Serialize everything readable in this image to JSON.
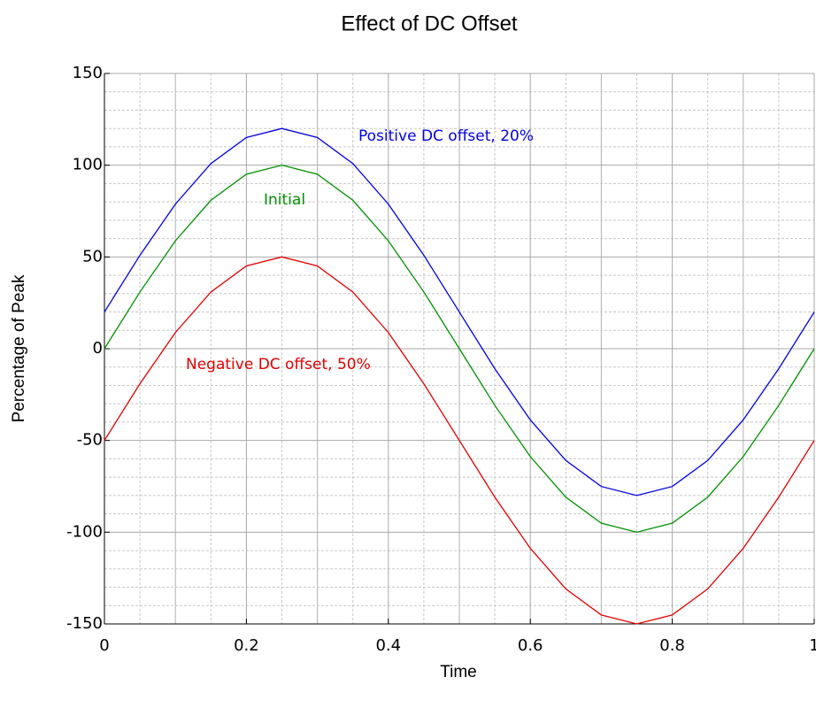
{
  "chart_data": {
    "type": "line",
    "title": "Effect of DC Offset",
    "xlabel": "Time",
    "ylabel": "Percentage of Peak",
    "x": [
      0,
      0.05,
      0.1,
      0.15,
      0.2,
      0.25,
      0.3,
      0.35,
      0.4,
      0.45,
      0.5,
      0.55,
      0.6,
      0.65,
      0.7,
      0.75,
      0.8,
      0.85,
      0.9,
      0.95,
      1
    ],
    "series": [
      {
        "name": "Positive DC offset, 20%",
        "color": "#0000e0",
        "values": [
          20,
          50.9,
          78.8,
          100.9,
          115.1,
          120,
          115.1,
          100.9,
          78.8,
          50.9,
          20,
          -10.9,
          -38.8,
          -60.9,
          -75.1,
          -80,
          -75.1,
          -60.9,
          -38.8,
          -10.9,
          20
        ]
      },
      {
        "name": "Initial",
        "color": "#009000",
        "values": [
          0,
          30.9,
          58.8,
          80.9,
          95.1,
          100,
          95.1,
          80.9,
          58.8,
          30.9,
          0,
          -30.9,
          -58.8,
          -80.9,
          -95.1,
          -100,
          -95.1,
          -80.9,
          -58.8,
          -30.9,
          0
        ]
      },
      {
        "name": "Negative DC offset, 50%",
        "color": "#e00000",
        "values": [
          -50,
          -19.1,
          8.8,
          30.9,
          45.1,
          50,
          45.1,
          30.9,
          8.8,
          -19.1,
          -50,
          -80.9,
          -108.8,
          -130.9,
          -145.1,
          -150,
          -145.1,
          -130.9,
          -108.8,
          -80.9,
          -50
        ]
      }
    ],
    "xlim": [
      0,
      1
    ],
    "xticks": [
      0,
      0.2,
      0.4,
      0.6,
      0.8,
      1
    ],
    "ylim": [
      -150,
      150
    ],
    "yticks": [
      -150,
      -100,
      -50,
      0,
      50,
      100,
      150
    ],
    "grid": true
  }
}
